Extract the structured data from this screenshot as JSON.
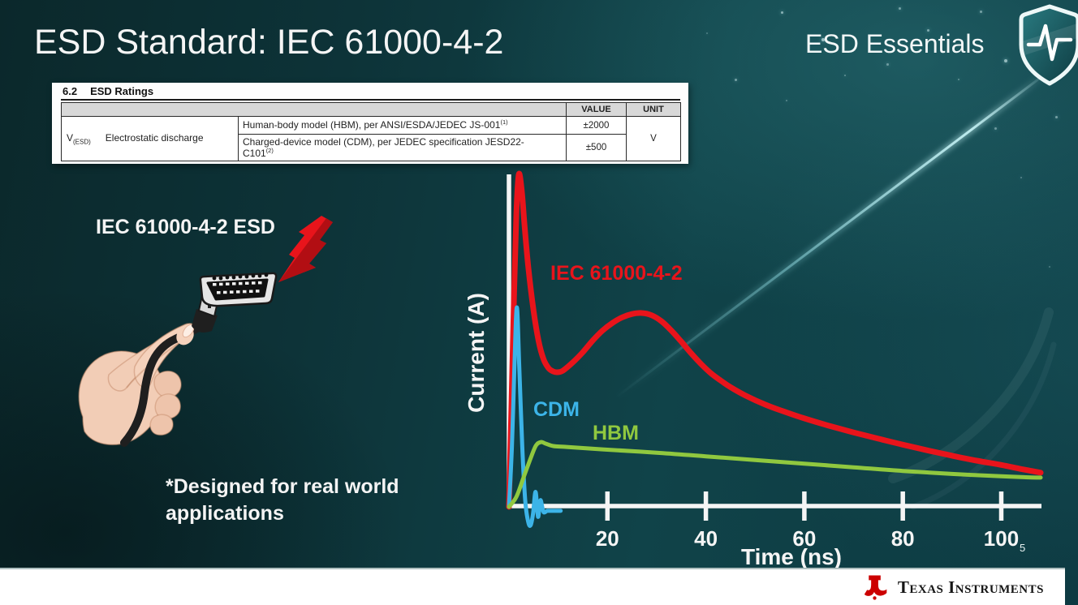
{
  "slide": {
    "title": "ESD Standard: IEC 61000-4-2",
    "brand": "ESD Essentials",
    "page_number": "5",
    "footnote_line1": "*Designed for real world",
    "footnote_line2": "applications",
    "footer_logo_text": "Texas Instruments"
  },
  "ratings_table": {
    "section": "6.2",
    "section_title": "ESD Ratings",
    "col_value": "VALUE",
    "col_unit": "UNIT",
    "param_symbol": "V",
    "param_symbol_sub": "(ESD)",
    "param_label": "Electrostatic discharge",
    "rows": [
      {
        "desc": "Human-body model (HBM), per ANSI/ESDA/JEDEC JS-001",
        "sup": "(1)",
        "value": "±2000"
      },
      {
        "desc": "Charged-device model (CDM), per JEDEC specification JESD22-",
        "desc2": "C101",
        "sup": "(2)",
        "value": "±500"
      }
    ],
    "unit": "V"
  },
  "illustration": {
    "label": "IEC 61000-4-2 ESD"
  },
  "chart": {
    "ylabel": "Current (A)",
    "xlabel": "Time (ns)",
    "series_labels": {
      "iec": "IEC 61000-4-2",
      "cdm": "CDM",
      "hbm": "HBM"
    }
  },
  "chart_data": {
    "type": "line",
    "xlabel": "Time (ns)",
    "ylabel": "Current (A)",
    "xlim": [
      0,
      110
    ],
    "x_ticks": [
      20,
      40,
      60,
      80,
      100
    ],
    "y_axis_note": "relative current, unlabeled axis",
    "grid": false,
    "legend": "inline colored labels",
    "series": [
      {
        "name": "IEC 61000-4-2",
        "color": "#e8141b",
        "x": [
          0,
          0.5,
          1,
          1.5,
          2,
          2.6,
          3.2,
          4,
          5,
          6,
          7,
          8,
          9,
          10,
          11,
          13,
          15,
          17,
          19,
          21,
          23,
          25,
          27,
          29,
          31,
          33,
          35,
          37,
          39,
          41,
          43,
          45,
          48,
          52,
          56,
          60,
          65,
          70,
          75,
          80,
          85,
          90,
          95,
          100,
          104,
          108
        ],
        "y": [
          0,
          0.3,
          0.62,
          0.88,
          1.0,
          0.95,
          0.84,
          0.71,
          0.59,
          0.5,
          0.445,
          0.418,
          0.407,
          0.405,
          0.41,
          0.435,
          0.465,
          0.5,
          0.53,
          0.553,
          0.57,
          0.58,
          0.583,
          0.576,
          0.558,
          0.53,
          0.497,
          0.462,
          0.43,
          0.402,
          0.38,
          0.36,
          0.335,
          0.308,
          0.286,
          0.266,
          0.244,
          0.224,
          0.205,
          0.187,
          0.17,
          0.154,
          0.139,
          0.126,
          0.114,
          0.103
        ]
      },
      {
        "name": "CDM",
        "color": "#3cb4e8",
        "x": [
          0,
          0.6,
          1.1,
          1.6,
          2.1,
          2.7,
          3.3,
          3.9,
          4.4,
          4.9,
          5.4,
          5.9,
          6.4,
          7,
          7.8,
          9,
          10.5
        ],
        "y": [
          0,
          0.18,
          0.42,
          0.6,
          0.42,
          0.18,
          0.02,
          -0.045,
          -0.055,
          -0.02,
          0.045,
          -0.03,
          0.02,
          -0.015,
          -0.012,
          -0.012,
          -0.012
        ]
      },
      {
        "name": "HBM",
        "color": "#90c83f",
        "x": [
          0,
          1.5,
          3,
          4.5,
          5.5,
          6.5,
          7.5,
          9,
          12,
          20,
          30,
          40,
          50,
          60,
          70,
          80,
          90,
          100,
          105,
          108
        ],
        "y": [
          0,
          0.03,
          0.09,
          0.15,
          0.185,
          0.195,
          0.19,
          0.183,
          0.18,
          0.172,
          0.163,
          0.152,
          0.141,
          0.13,
          0.119,
          0.108,
          0.099,
          0.092,
          0.089,
          0.088
        ]
      }
    ]
  }
}
